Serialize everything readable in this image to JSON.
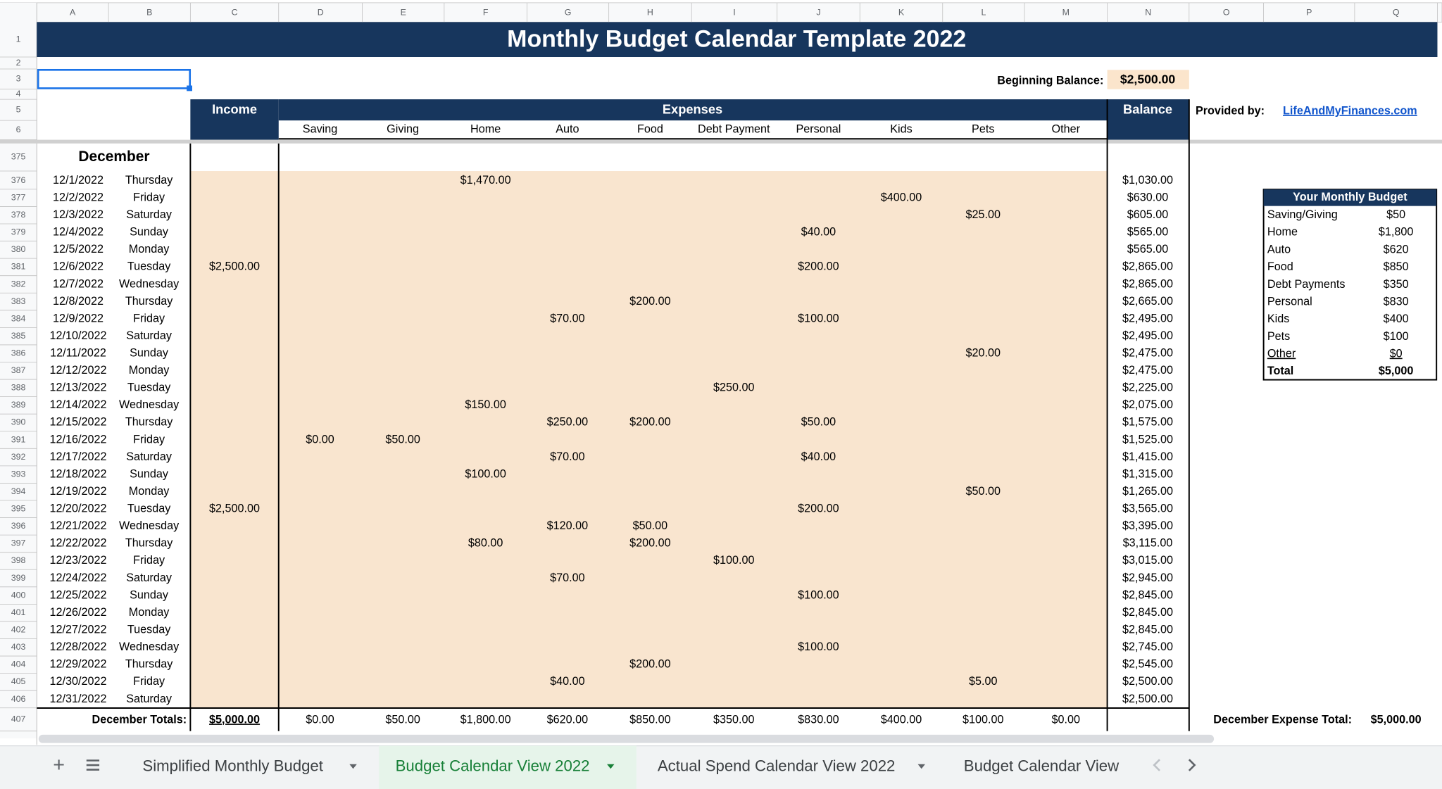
{
  "columns": [
    "A",
    "B",
    "C",
    "D",
    "E",
    "F",
    "G",
    "H",
    "I",
    "J",
    "K",
    "L",
    "M",
    "N",
    "O",
    "P",
    "Q"
  ],
  "top_rows": [
    "1",
    "2",
    "3",
    "4",
    "5",
    "6"
  ],
  "title": "Monthly Budget Calendar Template 2022",
  "beginning_balance": {
    "label": "Beginning Balance:",
    "value": "$2,500.00"
  },
  "headers": {
    "income": "Income",
    "expenses": "Expenses",
    "balance": "Balance",
    "subcategories": [
      "Saving",
      "Giving",
      "Home",
      "Auto",
      "Food",
      "Debt Payment",
      "Personal",
      "Kids",
      "Pets",
      "Other"
    ]
  },
  "provided_by": {
    "label": "Provided by:",
    "link": "LifeAndMyFinances.com"
  },
  "month": {
    "n": "375",
    "label": "December"
  },
  "rows": [
    {
      "n": "376",
      "cells": [
        "12/1/2022",
        "Thursday",
        null,
        null,
        null,
        "$1,470.00",
        null,
        null,
        null,
        null,
        null,
        null,
        null,
        "$1,030.00"
      ]
    },
    {
      "n": "377",
      "cells": [
        "12/2/2022",
        "Friday",
        null,
        null,
        null,
        null,
        null,
        null,
        null,
        null,
        "$400.00",
        null,
        null,
        "$630.00"
      ]
    },
    {
      "n": "378",
      "cells": [
        "12/3/2022",
        "Saturday",
        null,
        null,
        null,
        null,
        null,
        null,
        null,
        null,
        null,
        "$25.00",
        null,
        "$605.00"
      ]
    },
    {
      "n": "379",
      "cells": [
        "12/4/2022",
        "Sunday",
        null,
        null,
        null,
        null,
        null,
        null,
        null,
        "$40.00",
        null,
        null,
        null,
        "$565.00"
      ]
    },
    {
      "n": "380",
      "cells": [
        "12/5/2022",
        "Monday",
        null,
        null,
        null,
        null,
        null,
        null,
        null,
        null,
        null,
        null,
        null,
        "$565.00"
      ]
    },
    {
      "n": "381",
      "cells": [
        "12/6/2022",
        "Tuesday",
        "$2,500.00",
        null,
        null,
        null,
        null,
        null,
        null,
        "$200.00",
        null,
        null,
        null,
        "$2,865.00"
      ]
    },
    {
      "n": "382",
      "cells": [
        "12/7/2022",
        "Wednesday",
        null,
        null,
        null,
        null,
        null,
        null,
        null,
        null,
        null,
        null,
        null,
        "$2,865.00"
      ]
    },
    {
      "n": "383",
      "cells": [
        "12/8/2022",
        "Thursday",
        null,
        null,
        null,
        null,
        null,
        "$200.00",
        null,
        null,
        null,
        null,
        null,
        "$2,665.00"
      ]
    },
    {
      "n": "384",
      "cells": [
        "12/9/2022",
        "Friday",
        null,
        null,
        null,
        null,
        "$70.00",
        null,
        null,
        "$100.00",
        null,
        null,
        null,
        "$2,495.00"
      ]
    },
    {
      "n": "385",
      "cells": [
        "12/10/2022",
        "Saturday",
        null,
        null,
        null,
        null,
        null,
        null,
        null,
        null,
        null,
        null,
        null,
        "$2,495.00"
      ]
    },
    {
      "n": "386",
      "cells": [
        "12/11/2022",
        "Sunday",
        null,
        null,
        null,
        null,
        null,
        null,
        null,
        null,
        null,
        "$20.00",
        null,
        "$2,475.00"
      ]
    },
    {
      "n": "387",
      "cells": [
        "12/12/2022",
        "Monday",
        null,
        null,
        null,
        null,
        null,
        null,
        null,
        null,
        null,
        null,
        null,
        "$2,475.00"
      ]
    },
    {
      "n": "388",
      "cells": [
        "12/13/2022",
        "Tuesday",
        null,
        null,
        null,
        null,
        null,
        null,
        "$250.00",
        null,
        null,
        null,
        null,
        "$2,225.00"
      ]
    },
    {
      "n": "389",
      "cells": [
        "12/14/2022",
        "Wednesday",
        null,
        null,
        null,
        "$150.00",
        null,
        null,
        null,
        null,
        null,
        null,
        null,
        "$2,075.00"
      ]
    },
    {
      "n": "390",
      "cells": [
        "12/15/2022",
        "Thursday",
        null,
        null,
        null,
        null,
        "$250.00",
        "$200.00",
        null,
        "$50.00",
        null,
        null,
        null,
        "$1,575.00"
      ]
    },
    {
      "n": "391",
      "cells": [
        "12/16/2022",
        "Friday",
        null,
        "$0.00",
        "$50.00",
        null,
        null,
        null,
        null,
        null,
        null,
        null,
        null,
        "$1,525.00"
      ]
    },
    {
      "n": "392",
      "cells": [
        "12/17/2022",
        "Saturday",
        null,
        null,
        null,
        null,
        "$70.00",
        null,
        null,
        "$40.00",
        null,
        null,
        null,
        "$1,415.00"
      ]
    },
    {
      "n": "393",
      "cells": [
        "12/18/2022",
        "Sunday",
        null,
        null,
        null,
        "$100.00",
        null,
        null,
        null,
        null,
        null,
        null,
        null,
        "$1,315.00"
      ]
    },
    {
      "n": "394",
      "cells": [
        "12/19/2022",
        "Monday",
        null,
        null,
        null,
        null,
        null,
        null,
        null,
        null,
        null,
        "$50.00",
        null,
        "$1,265.00"
      ]
    },
    {
      "n": "395",
      "cells": [
        "12/20/2022",
        "Tuesday",
        "$2,500.00",
        null,
        null,
        null,
        null,
        null,
        null,
        "$200.00",
        null,
        null,
        null,
        "$3,565.00"
      ]
    },
    {
      "n": "396",
      "cells": [
        "12/21/2022",
        "Wednesday",
        null,
        null,
        null,
        null,
        "$120.00",
        "$50.00",
        null,
        null,
        null,
        null,
        null,
        "$3,395.00"
      ]
    },
    {
      "n": "397",
      "cells": [
        "12/22/2022",
        "Thursday",
        null,
        null,
        null,
        "$80.00",
        null,
        "$200.00",
        null,
        null,
        null,
        null,
        null,
        "$3,115.00"
      ]
    },
    {
      "n": "398",
      "cells": [
        "12/23/2022",
        "Friday",
        null,
        null,
        null,
        null,
        null,
        null,
        "$100.00",
        null,
        null,
        null,
        null,
        "$3,015.00"
      ]
    },
    {
      "n": "399",
      "cells": [
        "12/24/2022",
        "Saturday",
        null,
        null,
        null,
        null,
        "$70.00",
        null,
        null,
        null,
        null,
        null,
        null,
        "$2,945.00"
      ]
    },
    {
      "n": "400",
      "cells": [
        "12/25/2022",
        "Sunday",
        null,
        null,
        null,
        null,
        null,
        null,
        null,
        "$100.00",
        null,
        null,
        null,
        "$2,845.00"
      ]
    },
    {
      "n": "401",
      "cells": [
        "12/26/2022",
        "Monday",
        null,
        null,
        null,
        null,
        null,
        null,
        null,
        null,
        null,
        null,
        null,
        "$2,845.00"
      ]
    },
    {
      "n": "402",
      "cells": [
        "12/27/2022",
        "Tuesday",
        null,
        null,
        null,
        null,
        null,
        null,
        null,
        null,
        null,
        null,
        null,
        "$2,845.00"
      ]
    },
    {
      "n": "403",
      "cells": [
        "12/28/2022",
        "Wednesday",
        null,
        null,
        null,
        null,
        null,
        null,
        null,
        "$100.00",
        null,
        null,
        null,
        "$2,745.00"
      ]
    },
    {
      "n": "404",
      "cells": [
        "12/29/2022",
        "Thursday",
        null,
        null,
        null,
        null,
        null,
        "$200.00",
        null,
        null,
        null,
        null,
        null,
        "$2,545.00"
      ]
    },
    {
      "n": "405",
      "cells": [
        "12/30/2022",
        "Friday",
        null,
        null,
        null,
        null,
        "$40.00",
        null,
        null,
        null,
        null,
        "$5.00",
        null,
        "$2,500.00"
      ]
    },
    {
      "n": "406",
      "cells": [
        "12/31/2022",
        "Saturday",
        null,
        null,
        null,
        null,
        null,
        null,
        null,
        null,
        null,
        null,
        null,
        "$2,500.00"
      ]
    }
  ],
  "totals": {
    "n": "407",
    "label": "December Totals:",
    "values": [
      "$5,000.00",
      "$0.00",
      "$50.00",
      "$1,800.00",
      "$620.00",
      "$850.00",
      "$350.00",
      "$830.00",
      "$400.00",
      "$100.00",
      "$0.00"
    ],
    "expense_total_label": "December Expense Total:",
    "expense_total": "$5,000.00"
  },
  "budget": {
    "title": "Your Monthly Budget",
    "items": [
      [
        "Saving/Giving",
        "$50"
      ],
      [
        "Home",
        "$1,800"
      ],
      [
        "Auto",
        "$620"
      ],
      [
        "Food",
        "$850"
      ],
      [
        "Debt Payments",
        "$350"
      ],
      [
        "Personal",
        "$830"
      ],
      [
        "Kids",
        "$400"
      ],
      [
        "Pets",
        "$100"
      ],
      [
        "Other",
        "$0"
      ],
      [
        "Total",
        "$5,000"
      ]
    ]
  },
  "tabs": [
    "Simplified Monthly Budget",
    "Budget Calendar View 2022",
    "Actual Spend Calendar View 2022",
    "Budget Calendar View"
  ]
}
